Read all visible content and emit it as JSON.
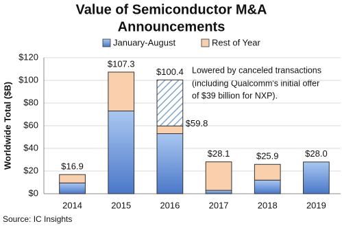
{
  "chart_data": {
    "type": "stacked-bar",
    "title": [
      "Value of Semiconductor M&A",
      "Announcements"
    ],
    "ylabel": "Worldwide Total ($B)",
    "source": "Source: IC Insights",
    "annotation": [
      "Lowered by canceled transactions",
      "(including Qualcomm's initial offer",
      "of $39 billion for NXP)."
    ],
    "categories": [
      "2014",
      "2015",
      "2016",
      "2017",
      "2018",
      "2019"
    ],
    "series": [
      {
        "name": "January-August",
        "color": "#6f9ee0",
        "values": [
          9.5,
          73,
          53,
          3,
          12,
          28.0
        ]
      },
      {
        "name": "Rest of Year",
        "color": "#fad0ac",
        "values": [
          7.4,
          34.3,
          6.8,
          25.1,
          13.9,
          0
        ]
      }
    ],
    "hatched_values": [
      null,
      null,
      40.6,
      null,
      null,
      null
    ],
    "hatch_color": "#7fa6cc",
    "totals": [
      {
        "value": 16.9,
        "label": "$16.9"
      },
      {
        "value": 107.3,
        "label": "$107.3"
      },
      {
        "value": 100.4,
        "label": "$100.4"
      },
      {
        "value": 28.1,
        "label": "$28.1"
      },
      {
        "value": 25.9,
        "label": "$25.9"
      },
      {
        "value": 28.0,
        "label": "$28.0"
      }
    ],
    "net_totals": [
      null,
      null,
      {
        "value": 59.8,
        "label": "$59.8"
      },
      null,
      null,
      null
    ],
    "ylim": [
      0,
      120
    ],
    "yticks": [
      {
        "value": 0,
        "label": "$0"
      },
      {
        "value": 20,
        "label": "$20"
      },
      {
        "value": 40,
        "label": "$40"
      },
      {
        "value": 60,
        "label": "$60"
      },
      {
        "value": 80,
        "label": "$80"
      },
      {
        "value": 100,
        "label": "$100"
      },
      {
        "value": 120,
        "label": "$120"
      }
    ],
    "grid": true
  }
}
